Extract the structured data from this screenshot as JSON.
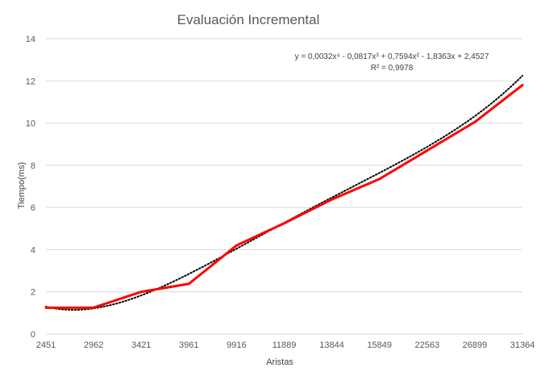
{
  "chart_data": {
    "type": "line",
    "title": "Evaluación Incremental",
    "xlabel": "Aristas",
    "ylabel": "Tiempo(ms)",
    "categories": [
      "2451",
      "2962",
      "3421",
      "3961",
      "9916",
      "11889",
      "13844",
      "15849",
      "22563",
      "26899",
      "31364"
    ],
    "series": [
      {
        "values": [
          1.25,
          1.25,
          2.0,
          2.38,
          4.2,
          5.25,
          6.38,
          7.35,
          8.7,
          10.05,
          11.8
        ],
        "color": "#ff0000"
      }
    ],
    "trendline": {
      "type": "polynomial",
      "order": 4,
      "equation": "y = 0,0032x⁴ - 0,0817x³ + 0,7594x² - 1,8363x + 2,4527",
      "r_squared": "R² = 0,9978",
      "color": "#000000",
      "style": "dotted"
    },
    "ylim": [
      0,
      14
    ],
    "yticks": [
      "0",
      "2",
      "4",
      "6",
      "8",
      "10",
      "12",
      "14"
    ],
    "grid": true,
    "legend": "none"
  }
}
